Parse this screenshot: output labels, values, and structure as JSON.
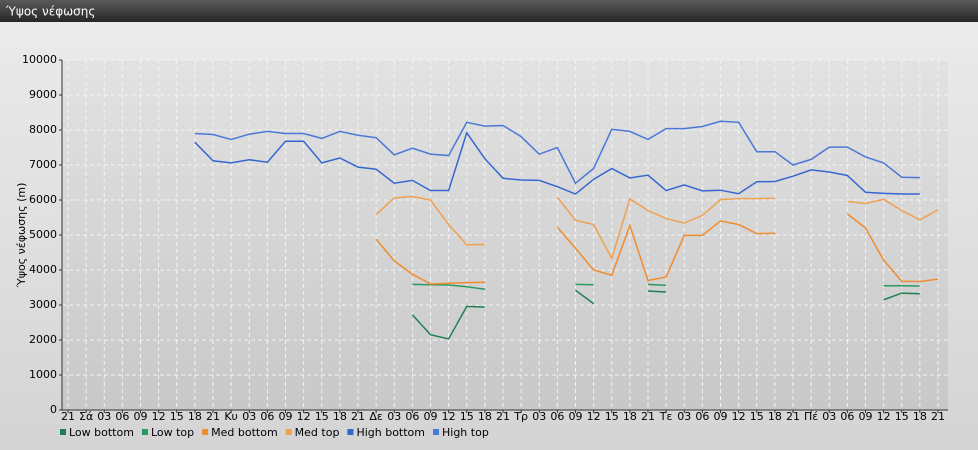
{
  "chart_data": {
    "type": "line",
    "title": "Ύψος νέφωσης",
    "y_label": "Ύψος νέφωσης (m)",
    "categories": [
      "21",
      "Σά",
      "03",
      "06",
      "09",
      "12",
      "15",
      "18",
      "21",
      "Κυ",
      "03",
      "06",
      "09",
      "12",
      "15",
      "18",
      "21",
      "Δε",
      "03",
      "06",
      "09",
      "12",
      "15",
      "18",
      "21",
      "Τρ",
      "03",
      "06",
      "09",
      "12",
      "15",
      "18",
      "21",
      "Τε",
      "03",
      "06",
      "09",
      "12",
      "15",
      "18",
      "21",
      "Πέ",
      "03",
      "06",
      "09",
      "12",
      "15",
      "18",
      "21"
    ],
    "ylim": [
      0,
      10000
    ],
    "yticks": [
      0,
      1000,
      2000,
      3000,
      4000,
      5000,
      6000,
      7000,
      8000,
      9000,
      10000
    ],
    "grid": true,
    "series": [
      {
        "name": "Low bottom",
        "color": "#1e8050",
        "values": [
          null,
          null,
          null,
          null,
          null,
          null,
          null,
          null,
          null,
          null,
          null,
          null,
          null,
          null,
          null,
          null,
          null,
          null,
          null,
          2720,
          2150,
          2030,
          2960,
          2940,
          null,
          null,
          null,
          null,
          3420,
          3040,
          null,
          null,
          3400,
          3370,
          null,
          null,
          null,
          null,
          null,
          null,
          null,
          null,
          null,
          null,
          null,
          3150,
          3340,
          3320,
          null
        ]
      },
      {
        "name": "Low top",
        "color": "#2a9a60",
        "values": [
          null,
          null,
          null,
          null,
          null,
          null,
          null,
          null,
          null,
          null,
          null,
          null,
          null,
          null,
          null,
          null,
          null,
          null,
          null,
          3590,
          3580,
          3570,
          3520,
          3450,
          null,
          null,
          null,
          null,
          3590,
          3580,
          null,
          null,
          3590,
          3560,
          null,
          null,
          null,
          null,
          null,
          null,
          null,
          null,
          null,
          null,
          null,
          3550,
          3550,
          3540,
          null
        ]
      },
      {
        "name": "Med bottom",
        "color": "#f08c30",
        "values": [
          null,
          null,
          null,
          null,
          null,
          null,
          null,
          null,
          null,
          null,
          null,
          null,
          null,
          null,
          null,
          null,
          null,
          4880,
          4260,
          3880,
          3600,
          3620,
          3640,
          3650,
          null,
          null,
          null,
          5220,
          4620,
          4000,
          3850,
          5270,
          3700,
          3800,
          4990,
          4990,
          5400,
          5300,
          5040,
          5050,
          null,
          null,
          null,
          5600,
          5200,
          4280,
          3680,
          3670,
          3740
        ]
      },
      {
        "name": "Med top",
        "color": "#f0a050",
        "values": [
          null,
          null,
          null,
          null,
          null,
          null,
          null,
          null,
          null,
          null,
          null,
          null,
          null,
          null,
          null,
          null,
          null,
          5580,
          6060,
          6100,
          6000,
          5300,
          4720,
          4730,
          null,
          null,
          null,
          6080,
          5420,
          5300,
          4330,
          6030,
          5700,
          5470,
          5340,
          5560,
          6010,
          6040,
          6040,
          6050,
          null,
          null,
          null,
          5960,
          5900,
          6020,
          5700,
          5430,
          5720
        ]
      },
      {
        "name": "High bottom",
        "color": "#3566d0",
        "values": [
          null,
          null,
          null,
          null,
          null,
          null,
          null,
          7650,
          7120,
          7060,
          7150,
          7080,
          7680,
          7680,
          7060,
          7200,
          6940,
          6880,
          6480,
          6560,
          6270,
          6270,
          7920,
          7180,
          6620,
          6570,
          6560,
          6380,
          6170,
          6590,
          6900,
          6630,
          6710,
          6270,
          6430,
          6260,
          6280,
          6180,
          6520,
          6530,
          6680,
          6860,
          6800,
          6700,
          6220,
          6190,
          6170,
          6170,
          null
        ]
      },
      {
        "name": "High top",
        "color": "#4a78d8",
        "values": [
          null,
          null,
          null,
          null,
          null,
          null,
          null,
          7900,
          7870,
          7730,
          7880,
          7960,
          7900,
          7900,
          7760,
          7960,
          7850,
          7780,
          7290,
          7480,
          7310,
          7270,
          8220,
          8110,
          8130,
          7810,
          7310,
          7500,
          6480,
          6900,
          8020,
          7960,
          7730,
          8040,
          8040,
          8100,
          8250,
          8220,
          7380,
          7380,
          7000,
          7160,
          7510,
          7510,
          7230,
          7060,
          6650,
          6640,
          null
        ]
      }
    ]
  }
}
